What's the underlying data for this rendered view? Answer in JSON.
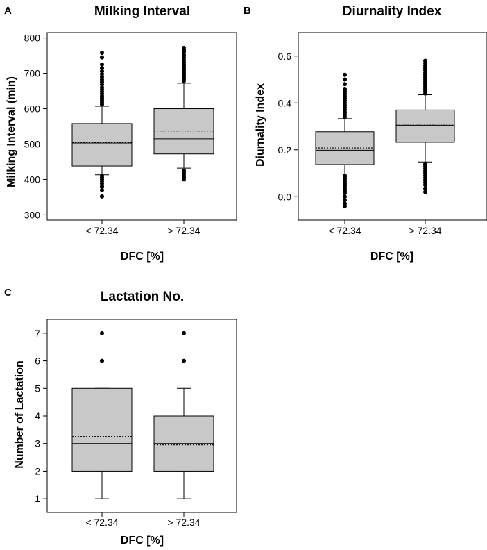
{
  "colors": {
    "box_fill": "#c8c8c8",
    "stroke": "#000000",
    "background": "#ffffff"
  },
  "chart_data": [
    {
      "panel_letter": "A",
      "type": "box",
      "title": "Milking Interval",
      "xlabel": "DFC [%]",
      "ylabel": "Milking Interval (min)",
      "ylim": [
        285,
        815
      ],
      "yticks": [
        300,
        400,
        500,
        600,
        700,
        800
      ],
      "ytick_labels": [
        "300",
        "400",
        "500",
        "600",
        "700",
        "800"
      ],
      "categories": [
        "< 72.34",
        "> 72.34"
      ],
      "boxes": [
        {
          "q1": 438,
          "median": 503,
          "mean": 505,
          "q3": 558,
          "whisker_low": 413,
          "whisker_high": 607,
          "outliers": [
            352,
            370,
            380,
            388,
            395,
            400,
            405,
            410,
            612,
            618,
            624,
            630,
            636,
            642,
            648,
            654,
            660,
            668,
            675,
            682,
            690,
            698,
            706,
            715,
            725,
            745,
            758
          ]
        },
        {
          "q1": 472,
          "median": 515,
          "mean": 537,
          "q3": 600,
          "whisker_low": 432,
          "whisker_high": 672,
          "outliers": [
            400,
            405,
            410,
            415,
            420,
            425,
            678,
            684,
            690,
            696,
            702,
            708,
            714,
            720,
            726,
            732,
            738,
            745,
            752,
            760,
            766,
            772
          ]
        }
      ]
    },
    {
      "panel_letter": "B",
      "type": "box",
      "title": "Diurnality Index",
      "xlabel": "DFC [%]",
      "ylabel": "Diurnality Index",
      "ylim": [
        -0.1,
        0.7
      ],
      "yticks": [
        0.0,
        0.2,
        0.4,
        0.6
      ],
      "ytick_labels": [
        "0.0",
        "0.2",
        "0.4",
        "0.6"
      ],
      "categories": [
        "< 72.34",
        "> 72.34"
      ],
      "boxes": [
        {
          "q1": 0.137,
          "median": 0.198,
          "mean": 0.208,
          "q3": 0.277,
          "whisker_low": 0.097,
          "whisker_high": 0.333,
          "outliers": [
            -0.04,
            -0.03,
            -0.015,
            0.0,
            0.015,
            0.025,
            0.035,
            0.045,
            0.055,
            0.065,
            0.075,
            0.085,
            0.09,
            0.34,
            0.35,
            0.36,
            0.37,
            0.38,
            0.39,
            0.4,
            0.41,
            0.42,
            0.43,
            0.44,
            0.45,
            0.46,
            0.48,
            0.5,
            0.52
          ]
        },
        {
          "q1": 0.232,
          "median": 0.305,
          "mean": 0.31,
          "q3": 0.37,
          "whisker_low": 0.148,
          "whisker_high": 0.435,
          "outliers": [
            0.02,
            0.035,
            0.05,
            0.06,
            0.07,
            0.08,
            0.09,
            0.1,
            0.11,
            0.12,
            0.13,
            0.14,
            0.44,
            0.45,
            0.46,
            0.47,
            0.48,
            0.49,
            0.5,
            0.51,
            0.52,
            0.53,
            0.54,
            0.55,
            0.56,
            0.57,
            0.58
          ]
        }
      ]
    },
    {
      "panel_letter": "C",
      "type": "box",
      "title": "Lactation No.",
      "xlabel": "DFC [%]",
      "ylabel": "Number of Lactation",
      "ylim": [
        0.5,
        7.5
      ],
      "yticks": [
        1,
        2,
        3,
        4,
        5,
        6,
        7
      ],
      "ytick_labels": [
        "1",
        "2",
        "3",
        "4",
        "5",
        "6",
        "7"
      ],
      "categories": [
        "< 72.34",
        "> 72.34"
      ],
      "boxes": [
        {
          "q1": 2,
          "median": 3,
          "mean": 3.25,
          "q3": 5,
          "whisker_low": 1,
          "whisker_high": 5,
          "outliers": [
            6,
            7
          ]
        },
        {
          "q1": 2,
          "median": 3,
          "mean": 2.95,
          "q3": 4,
          "whisker_low": 1,
          "whisker_high": 5,
          "outliers": [
            6,
            7
          ]
        }
      ]
    }
  ]
}
